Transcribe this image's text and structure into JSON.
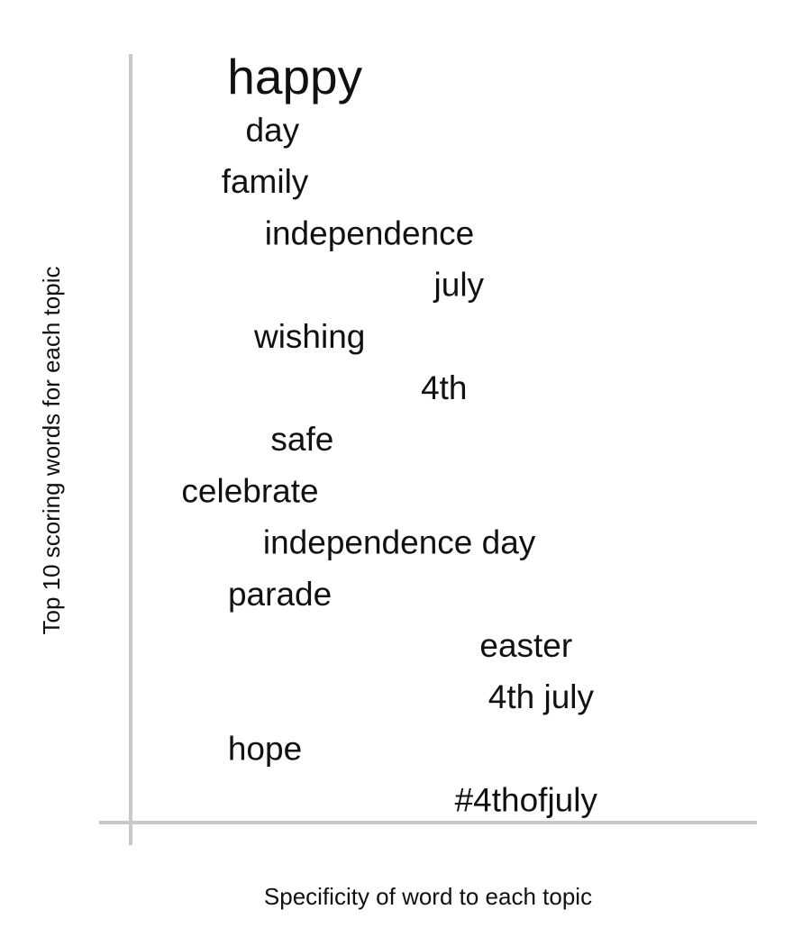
{
  "chart_data": {
    "type": "scatter",
    "title": "",
    "xlabel": "Specificity of word to each topic",
    "ylabel": "Top 10 scoring words for each topic",
    "grid": false,
    "colors": {
      "axis": "#c8c8c8",
      "text": "#111111"
    },
    "points": [
      {
        "word": "happy",
        "specificity": 0.22,
        "rank": 1,
        "emphasis": "large"
      },
      {
        "word": "day",
        "specificity": 0.19,
        "rank": 2
      },
      {
        "word": "family",
        "specificity": 0.18,
        "rank": 3
      },
      {
        "word": "independence",
        "specificity": 0.32,
        "rank": 4
      },
      {
        "word": "july",
        "specificity": 0.44,
        "rank": 5
      },
      {
        "word": "wishing",
        "specificity": 0.24,
        "rank": 6
      },
      {
        "word": "4th",
        "specificity": 0.42,
        "rank": 7
      },
      {
        "word": "safe",
        "specificity": 0.23,
        "rank": 8
      },
      {
        "word": "celebrate",
        "specificity": 0.16,
        "rank": 9
      },
      {
        "word": "independence day",
        "specificity": 0.36,
        "rank": 10
      },
      {
        "word": "parade",
        "specificity": 0.2,
        "rank": 11
      },
      {
        "word": "easter",
        "specificity": 0.53,
        "rank": 12
      },
      {
        "word": "4th july",
        "specificity": 0.55,
        "rank": 13
      },
      {
        "word": "hope",
        "specificity": 0.18,
        "rank": 14
      },
      {
        "word": "#4thofjuly",
        "specificity": 0.53,
        "rank": 15
      }
    ]
  }
}
